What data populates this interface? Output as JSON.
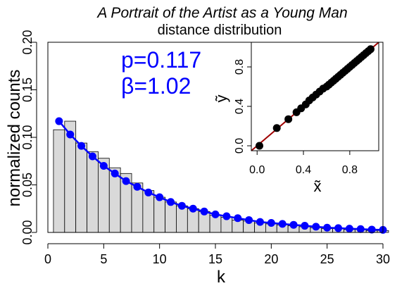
{
  "chart_data": [
    {
      "type": "bar",
      "title": "A Portrait of the Artist as a Young Man",
      "subtitle": "distance distribution",
      "xlabel": "k",
      "ylabel": "normalized counts",
      "xlim": [
        0,
        30
      ],
      "ylim": [
        0,
        0.2
      ],
      "x_ticks": [
        "0",
        "5",
        "10",
        "15",
        "20",
        "25",
        "30"
      ],
      "y_ticks": [
        "0.00",
        "0.05",
        "0.10",
        "0.15",
        "0.20"
      ],
      "annotations": [
        "p=0.117",
        "β=1.02"
      ],
      "histogram": {
        "x": [
          1,
          2,
          3,
          4,
          5,
          6,
          7,
          8,
          9,
          10,
          11,
          12,
          13,
          14,
          15,
          16,
          17,
          18,
          19,
          20,
          21,
          22,
          23,
          24,
          25,
          26,
          27,
          28,
          29,
          30
        ],
        "values": [
          0.108,
          0.117,
          0.094,
          0.085,
          0.078,
          0.068,
          0.062,
          0.052,
          0.044,
          0.037,
          0.032,
          0.028,
          0.025,
          0.022,
          0.018,
          0.016,
          0.013,
          0.012,
          0.01,
          0.009,
          0.008,
          0.007,
          0.006,
          0.005,
          0.004,
          0.004,
          0.003,
          0.003,
          0.002,
          0.002
        ]
      },
      "fit": {
        "x": [
          1,
          2,
          3,
          4,
          5,
          6,
          7,
          8,
          9,
          10,
          11,
          12,
          13,
          14,
          15,
          16,
          17,
          18,
          19,
          20,
          21,
          22,
          23,
          24,
          25,
          26,
          27,
          28,
          29,
          30
        ],
        "values": [
          0.117,
          0.103,
          0.091,
          0.08,
          0.07,
          0.062,
          0.054,
          0.048,
          0.042,
          0.037,
          0.032,
          0.028,
          0.025,
          0.022,
          0.019,
          0.017,
          0.015,
          0.013,
          0.011,
          0.01,
          0.009,
          0.008,
          0.007,
          0.006,
          0.005,
          0.0045,
          0.004,
          0.0035,
          0.003,
          0.0027
        ]
      },
      "colors": {
        "bars": "#d9d9d9",
        "bar_edge": "#000000",
        "fit": "#0000ff"
      }
    },
    {
      "type": "scatter",
      "xlabel": "x̃",
      "ylabel": "ỹ",
      "xlim": [
        -0.05,
        1.05
      ],
      "ylim": [
        -0.05,
        1.05
      ],
      "x_ticks": [
        "0.0",
        "0.4",
        "0.8"
      ],
      "y_ticks": [
        "0.0",
        "0.4",
        "0.8"
      ],
      "points": {
        "x": [
          0.02,
          0.17,
          0.27,
          0.34,
          0.38,
          0.42,
          0.45,
          0.48,
          0.51,
          0.54,
          0.57,
          0.6,
          0.62,
          0.64,
          0.66,
          0.68,
          0.7,
          0.72,
          0.74,
          0.76,
          0.78,
          0.8,
          0.82,
          0.84,
          0.86,
          0.88,
          0.9,
          0.92,
          0.94,
          0.96,
          0.98
        ],
        "y": [
          0.0,
          0.18,
          0.27,
          0.34,
          0.38,
          0.42,
          0.46,
          0.49,
          0.52,
          0.55,
          0.58,
          0.6,
          0.62,
          0.64,
          0.66,
          0.68,
          0.7,
          0.72,
          0.74,
          0.76,
          0.78,
          0.8,
          0.82,
          0.84,
          0.86,
          0.88,
          0.9,
          0.92,
          0.94,
          0.96,
          0.98
        ]
      },
      "reference_line": [
        [
          -0.05,
          -0.05
        ],
        [
          1.05,
          1.05
        ]
      ],
      "colors": {
        "points": "#000000",
        "reference_line": "#a00000"
      }
    }
  ]
}
